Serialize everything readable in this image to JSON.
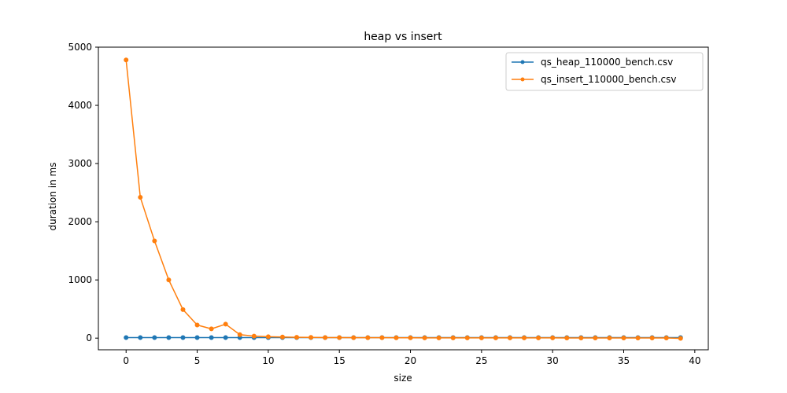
{
  "chart_data": {
    "type": "line",
    "title": "heap vs insert",
    "xlabel": "size",
    "ylabel": "duration in ms",
    "xlim": [
      -1.95,
      40.95
    ],
    "ylim": [
      -200,
      5000
    ],
    "xticks": [
      0,
      5,
      10,
      15,
      20,
      25,
      30,
      35,
      40
    ],
    "yticks": [
      0,
      1000,
      2000,
      3000,
      4000,
      5000
    ],
    "grid": false,
    "legend_position": "top-right",
    "x": [
      0,
      1,
      2,
      3,
      4,
      5,
      6,
      7,
      8,
      9,
      10,
      11,
      12,
      13,
      14,
      15,
      16,
      17,
      18,
      19,
      20,
      21,
      22,
      23,
      24,
      25,
      26,
      27,
      28,
      29,
      30,
      31,
      32,
      33,
      34,
      35,
      36,
      37,
      38,
      39
    ],
    "series": [
      {
        "name": "qs_heap_110000_bench.csv",
        "color": "#1f77b4",
        "values": [
          9,
          9,
          9,
          9,
          9,
          9,
          9,
          9,
          9,
          9,
          9,
          9,
          9,
          9,
          9,
          9,
          9,
          9,
          9,
          9,
          9,
          9,
          9,
          9,
          9,
          9,
          9,
          9,
          9,
          9,
          9,
          9,
          9,
          9,
          9,
          9,
          9,
          9,
          9,
          9
        ]
      },
      {
        "name": "qs_insert_110000_bench.csv",
        "color": "#ff7f0e",
        "values": [
          4780,
          2420,
          1670,
          1000,
          490,
          225,
          160,
          240,
          60,
          35,
          25,
          20,
          15,
          12,
          10,
          9,
          8,
          7,
          7,
          6,
          6,
          5,
          5,
          5,
          5,
          4,
          4,
          4,
          4,
          4,
          4,
          3,
          3,
          3,
          3,
          3,
          3,
          3,
          3,
          -5
        ]
      }
    ]
  }
}
